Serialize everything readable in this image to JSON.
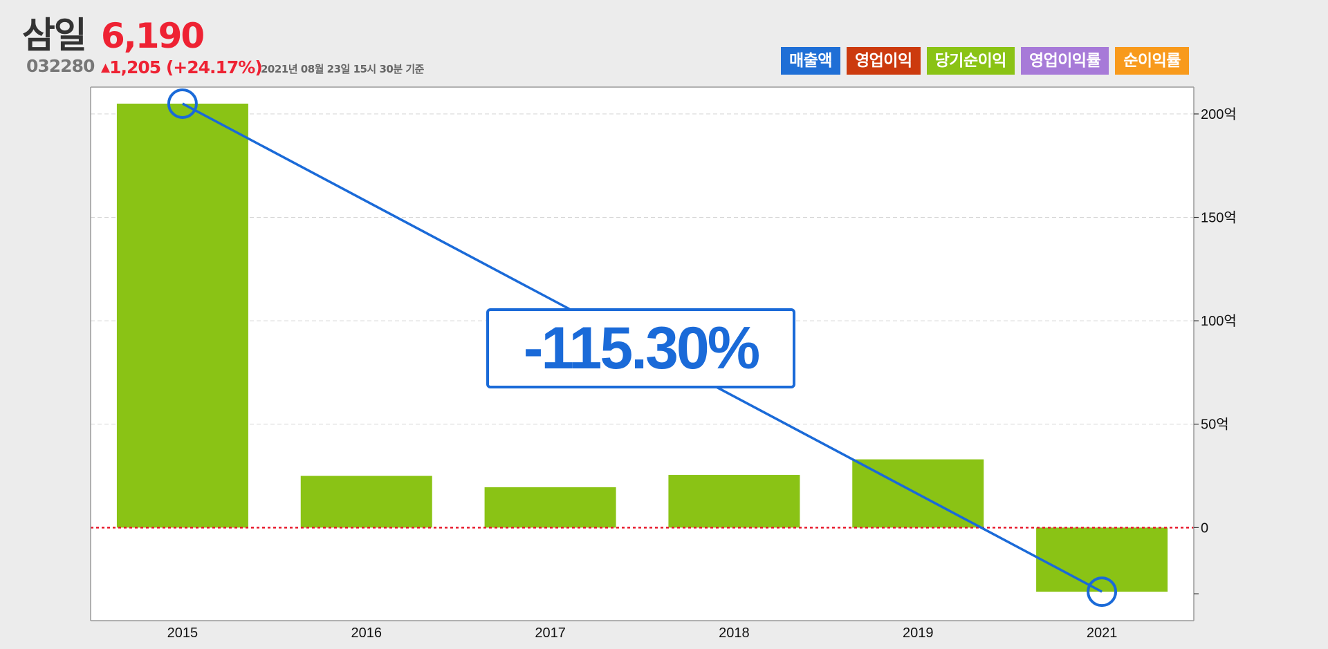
{
  "header": {
    "company_name": "삼일",
    "code": "032280",
    "price": "6,190",
    "change_arrow": "▲",
    "change_text": "1,205 (+24.17%)",
    "as_of": "2021년 08월 23일 15시 30분 기준"
  },
  "legend": [
    {
      "label": "매출액",
      "color": "#1f6fd6"
    },
    {
      "label": "영업이익",
      "color": "#cc3a0e"
    },
    {
      "label": "당기순이익",
      "color": "#8ac315"
    },
    {
      "label": "영업이익률",
      "color": "#a77ad8"
    },
    {
      "label": "순이익률",
      "color": "#f89a1c"
    }
  ],
  "chart_data": {
    "type": "bar",
    "categories": [
      "2015",
      "2016",
      "2017",
      "2018",
      "2019",
      "2021"
    ],
    "series": [
      {
        "name": "당기순이익",
        "color": "#8ac315",
        "values": [
          205,
          25,
          19.5,
          25.5,
          33,
          -31
        ]
      }
    ],
    "trend_line": {
      "from": "2015",
      "to": "2021",
      "start_value": 205,
      "end_value": -31,
      "color": "#1a6ad8"
    },
    "annotation": "-115.30%",
    "y_ticks": [
      {
        "value": 200,
        "label": "200억"
      },
      {
        "value": 150,
        "label": "150억"
      },
      {
        "value": 100,
        "label": "100억"
      },
      {
        "value": 50,
        "label": "50억"
      },
      {
        "value": 0,
        "label": "0"
      },
      {
        "value": -32,
        "label": ""
      }
    ],
    "ylim": [
      -45,
      213
    ],
    "zero_line_color": "#e8192c",
    "grid": true,
    "legend_position": "top-right"
  }
}
